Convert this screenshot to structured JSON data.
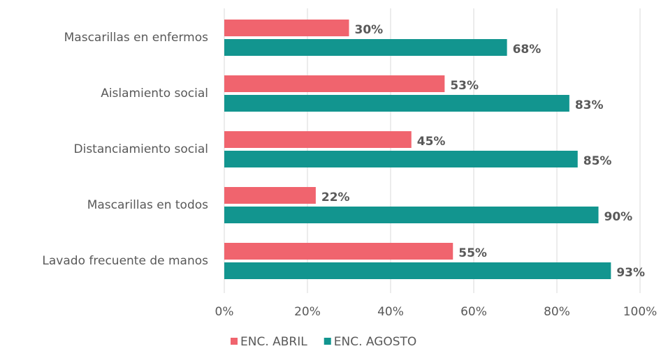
{
  "chart_data": {
    "type": "hbar",
    "categories": [
      "Mascarillas en enfermos",
      "Aislamiento social",
      "Distanciamiento social",
      "Mascarillas en todos",
      "Lavado frecuente de manos"
    ],
    "series": [
      {
        "name": "ENC. ABRIL",
        "color": "#f0646e",
        "values": [
          30,
          53,
          45,
          22,
          55
        ],
        "value_labels": [
          "30%",
          "53%",
          "45%",
          "22%",
          "55%"
        ]
      },
      {
        "name": "ENC. AGOSTO",
        "color": "#12958f",
        "values": [
          68,
          83,
          85,
          90,
          93
        ],
        "value_labels": [
          "68%",
          "83%",
          "85%",
          "90%",
          "93%"
        ]
      }
    ],
    "xlim": [
      0,
      100
    ],
    "xticks": [
      {
        "value": 0,
        "label": "0%"
      },
      {
        "value": 20,
        "label": "20%"
      },
      {
        "value": 40,
        "label": "40%"
      },
      {
        "value": 60,
        "label": "60%"
      },
      {
        "value": 80,
        "label": "80%"
      },
      {
        "value": 100,
        "label": "100%"
      }
    ],
    "grid": true,
    "legend": "bottom"
  }
}
